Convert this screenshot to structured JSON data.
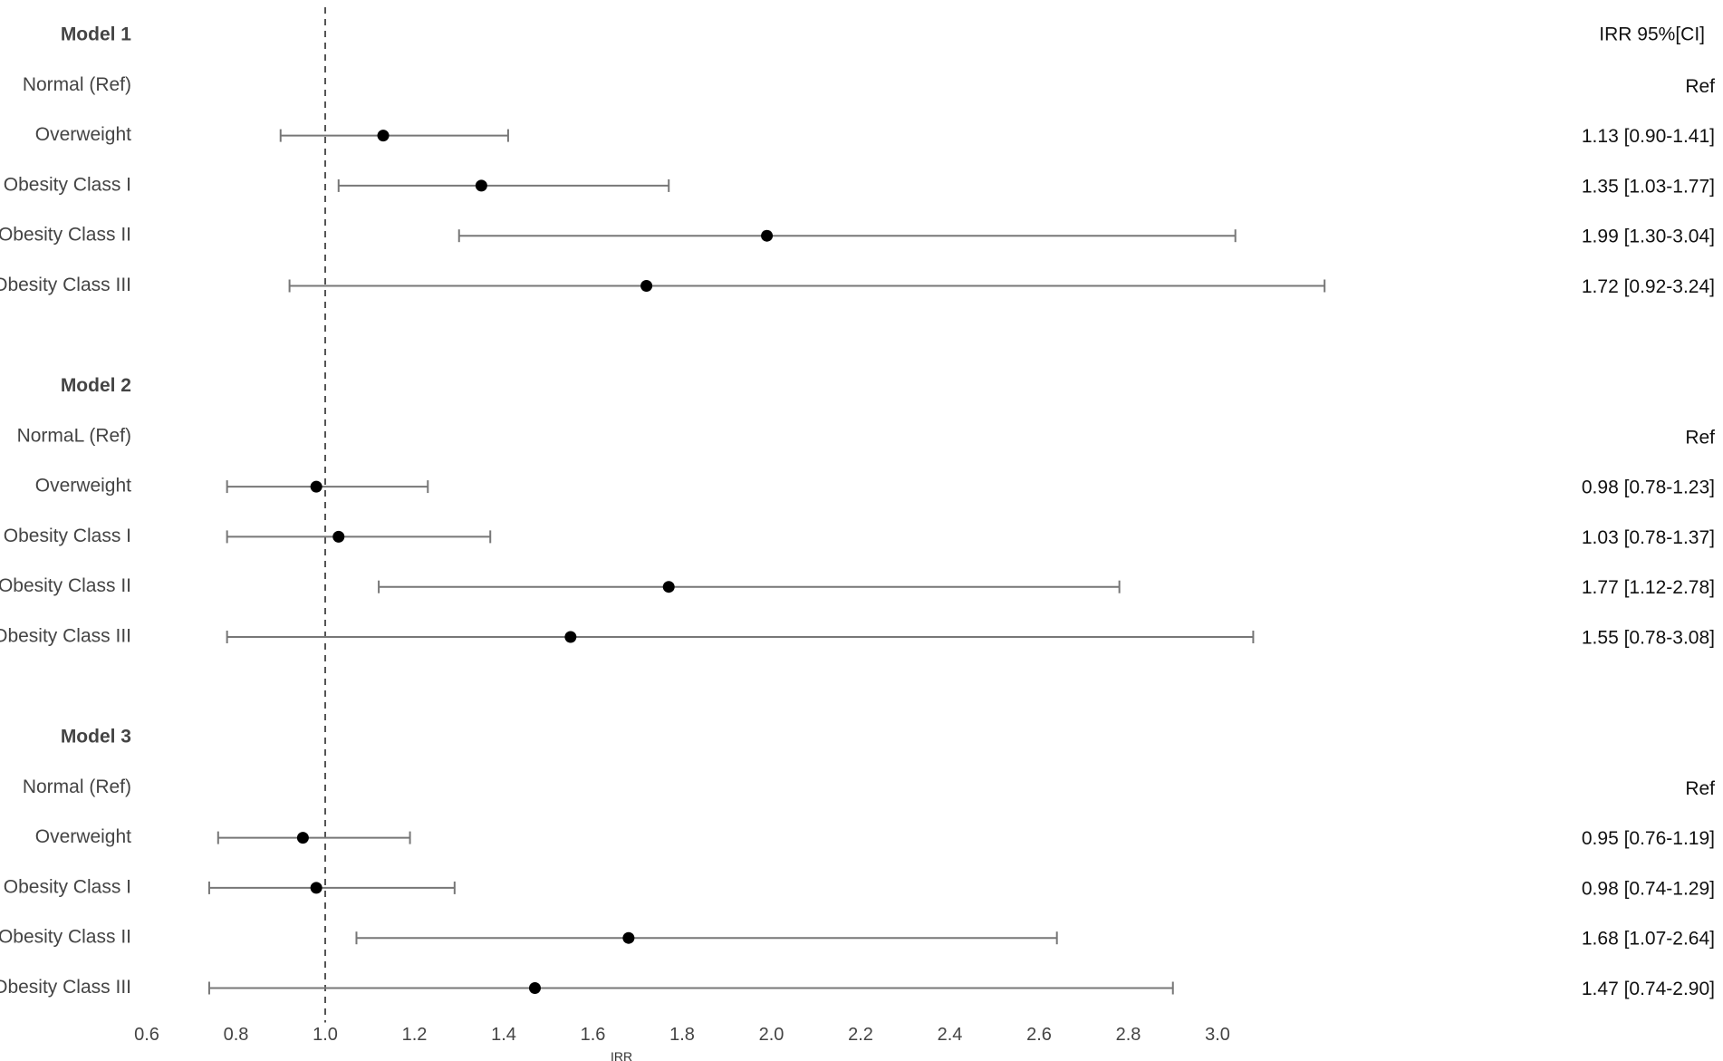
{
  "chart_data": {
    "type": "forest",
    "column_header": "IRR 95%[CI]",
    "xlabel": "IRR",
    "xlim": [
      0.6,
      3.2
    ],
    "xticks": [
      "0.6",
      "0.8",
      "1.0",
      "1.2",
      "1.4",
      "1.6",
      "1.8",
      "2.0",
      "2.2",
      "2.4",
      "2.6",
      "2.8",
      "3.0"
    ],
    "reference_line": 1.0,
    "colors": {
      "point": "#000000",
      "whisker": "#777777",
      "reference": "#555555"
    },
    "groups": [
      {
        "label": "Model 1",
        "rows": [
          {
            "label": "Normal (Ref)",
            "text": "Ref",
            "est": null,
            "lo": null,
            "hi": null
          },
          {
            "label": "Overweight",
            "text": "1.13 [0.90-1.41]",
            "est": 1.13,
            "lo": 0.9,
            "hi": 1.41
          },
          {
            "label": "Obesity Class I",
            "text": "1.35 [1.03-1.77]",
            "est": 1.35,
            "lo": 1.03,
            "hi": 1.77
          },
          {
            "label": "Obesity Class II",
            "text": "1.99 [1.30-3.04]",
            "est": 1.99,
            "lo": 1.3,
            "hi": 3.04
          },
          {
            "label": "Obesity Class III",
            "text": "1.72 [0.92-3.24]",
            "est": 1.72,
            "lo": 0.92,
            "hi": 3.24
          }
        ]
      },
      {
        "label": "Model 2",
        "rows": [
          {
            "label": "NormaL (Ref)",
            "text": "Ref",
            "est": null,
            "lo": null,
            "hi": null
          },
          {
            "label": "Overweight",
            "text": "0.98 [0.78-1.23]",
            "est": 0.98,
            "lo": 0.78,
            "hi": 1.23
          },
          {
            "label": "Obesity Class I",
            "text": "1.03 [0.78-1.37]",
            "est": 1.03,
            "lo": 0.78,
            "hi": 1.37
          },
          {
            "label": "Obesity Class II",
            "text": "1.77 [1.12-2.78]",
            "est": 1.77,
            "lo": 1.12,
            "hi": 2.78
          },
          {
            "label": "Obesity Class III",
            "text": "1.55 [0.78-3.08]",
            "est": 1.55,
            "lo": 0.78,
            "hi": 3.08
          }
        ]
      },
      {
        "label": "Model 3",
        "rows": [
          {
            "label": "Normal (Ref)",
            "text": "Ref",
            "est": null,
            "lo": null,
            "hi": null
          },
          {
            "label": "Overweight",
            "text": "0.95 [0.76-1.19]",
            "est": 0.95,
            "lo": 0.76,
            "hi": 1.19
          },
          {
            "label": "Obesity Class I",
            "text": "0.98 [0.74-1.29]",
            "est": 0.98,
            "lo": 0.74,
            "hi": 1.29
          },
          {
            "label": "Obesity Class II",
            "text": "1.68 [1.07-2.64]",
            "est": 1.68,
            "lo": 1.07,
            "hi": 2.64
          },
          {
            "label": "Obesity Class III",
            "text": "1.47 [0.74-2.90]",
            "est": 1.47,
            "lo": 0.74,
            "hi": 2.9
          }
        ]
      }
    ]
  }
}
